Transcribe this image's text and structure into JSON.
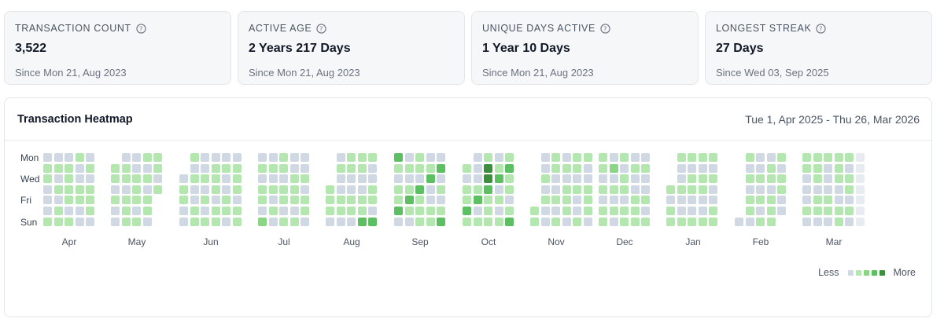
{
  "stats": [
    {
      "label": "TRANSACTION COUNT",
      "value": "3,522",
      "sub": "Since Mon 21, Aug 2023"
    },
    {
      "label": "ACTIVE AGE",
      "value": "2 Years 217 Days",
      "sub": "Since Mon 21, Aug 2023"
    },
    {
      "label": "UNIQUE DAYS ACTIVE",
      "value": "1 Year 10 Days",
      "sub": "Since Mon 21, Aug 2023"
    },
    {
      "label": "LONGEST STREAK",
      "value": "27 Days",
      "sub": "Since Wed 03, Sep 2025"
    }
  ],
  "heatmap": {
    "title": "Transaction Heatmap",
    "range": "Tue 1, Apr 2025 - Thu 26, Mar 2026",
    "day_labels": [
      "Mon",
      "Wed",
      "Fri",
      "Sun"
    ],
    "months": [
      "Apr",
      "May",
      "Jun",
      "Jul",
      "Aug",
      "Sep",
      "Oct",
      "Nov",
      "Dec",
      "Jan",
      "Feb",
      "Mar"
    ],
    "legend_less": "Less",
    "legend_more": "More",
    "colors": {
      "empty": "#cfd8e3",
      "future": "#e8ecf1",
      "level1": "#b4e6b0",
      "level2": "#89d684",
      "level3": "#5cbf61",
      "level4": "#3d8f3e"
    },
    "activity_levels": [
      [
        0,
        1,
        1,
        0,
        0,
        0,
        1,
        0,
        1,
        0,
        1,
        0,
        1,
        1,
        0,
        1,
        1,
        1,
        1,
        0,
        1,
        1,
        0,
        0,
        1,
        1,
        0,
        0,
        0,
        1,
        0,
        1,
        1,
        1,
        0
      ],
      [
        1,
        1,
        0,
        1,
        0,
        0,
        0,
        1,
        1,
        0,
        1,
        1,
        1,
        0,
        0,
        1,
        1,
        1,
        0,
        1,
        1,
        0,
        1,
        0,
        1,
        1,
        0,
        1,
        1,
        0,
        1,
        0,
        1,
        1,
        0
      ],
      [
        0,
        1,
        0,
        1,
        0,
        0,
        1,
        1,
        0,
        0,
        1,
        0,
        1,
        0,
        1,
        0,
        1,
        1,
        1,
        0,
        1,
        1,
        0,
        1,
        0,
        0,
        1,
        1,
        0,
        0,
        1,
        1,
        1,
        0,
        1
      ],
      [
        1,
        0,
        1,
        0,
        1,
        1,
        0,
        2,
        0,
        1,
        0,
        1,
        0,
        1,
        0,
        1,
        1,
        0,
        1,
        1,
        0,
        1,
        0,
        0,
        1,
        1,
        1,
        0,
        1,
        0,
        0,
        1,
        0,
        1,
        1
      ],
      [
        0,
        1,
        1,
        1,
        0,
        0,
        1,
        0,
        0,
        1,
        1,
        0,
        1,
        1,
        0,
        0,
        1,
        1,
        0,
        1,
        1,
        0,
        0,
        1,
        1,
        0,
        1,
        0,
        0,
        1,
        1,
        0,
        1,
        0,
        1
      ]
    ]
  }
}
